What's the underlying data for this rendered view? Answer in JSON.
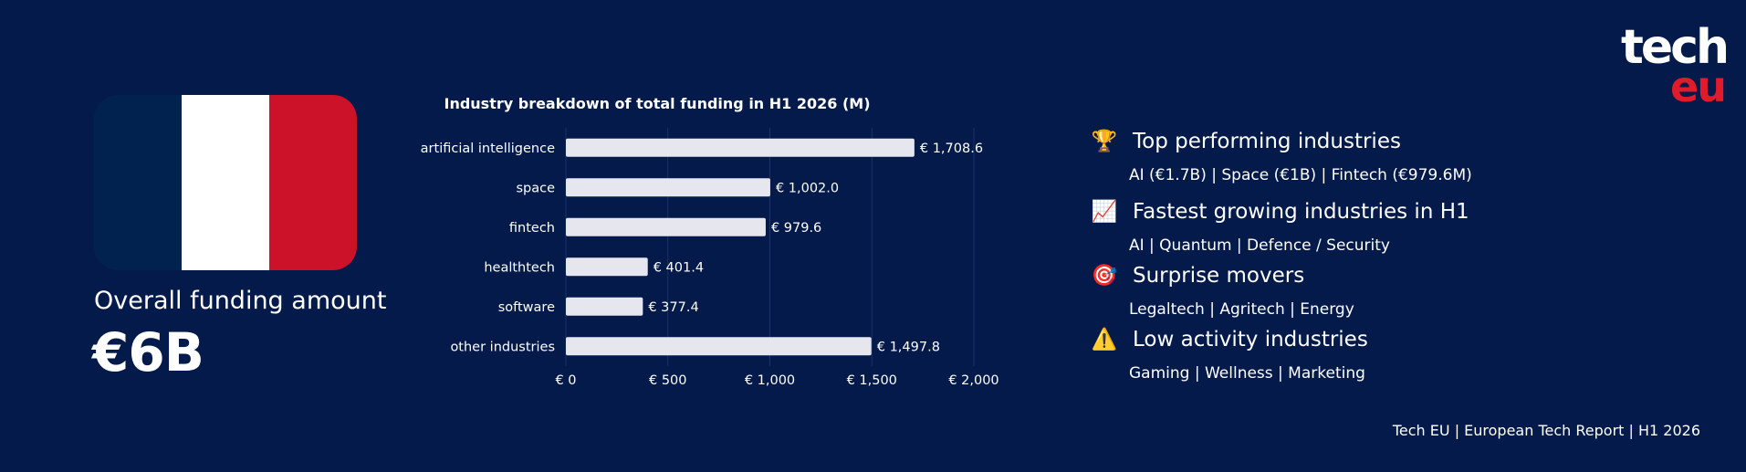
{
  "flag": {
    "colors": [
      "#01224f",
      "#ffffff",
      "#cc1228"
    ]
  },
  "funding": {
    "label": "Overall funding amount",
    "value": "€6B"
  },
  "chart_data": {
    "type": "bar",
    "orientation": "horizontal",
    "title": "Industry breakdown of total funding in H1 2026 (M)",
    "categories": [
      "artificial intelligence",
      "space",
      "fintech",
      "healthtech",
      "software",
      "other industries"
    ],
    "values": [
      1708.6,
      1002.0,
      979.6,
      401.4,
      377.4,
      1497.8
    ],
    "value_labels": [
      "€ 1,708.6",
      "€ 1,002.0",
      "€ 979.6",
      "€ 401.4",
      "€ 377.4",
      "€ 1,497.8"
    ],
    "xlim": [
      0,
      2000
    ],
    "x_ticks": [
      0,
      500,
      1000,
      1500,
      2000
    ],
    "x_tick_labels": [
      "€ 0",
      "€ 500",
      "€ 1,000",
      "€ 1,500",
      "€ 2,000"
    ],
    "grid": true,
    "bar_color": "#e6e6ee"
  },
  "insights": [
    {
      "icon": "trophy-icon",
      "emoji": "🏆",
      "heading": "Top performing industries",
      "detail": "AI (€1.7B) | Space (€1B) | Fintech (€979.6M)"
    },
    {
      "icon": "chart-increasing-icon",
      "emoji": "📈",
      "heading": "Fastest growing industries in H1",
      "detail": "AI | Quantum | Defence / Security"
    },
    {
      "icon": "target-icon",
      "emoji": "🎯",
      "heading": "Surprise movers",
      "detail": "Legaltech | Agritech | Energy"
    },
    {
      "icon": "warning-icon",
      "emoji": "⚠️",
      "heading": "Low activity industries",
      "detail": "Gaming | Wellness | Marketing"
    }
  ],
  "logo": {
    "line1": "tech",
    "line2": "eu",
    "accent": "#e01b2a"
  },
  "footer": "Tech EU | European Tech Report | H1 2026"
}
